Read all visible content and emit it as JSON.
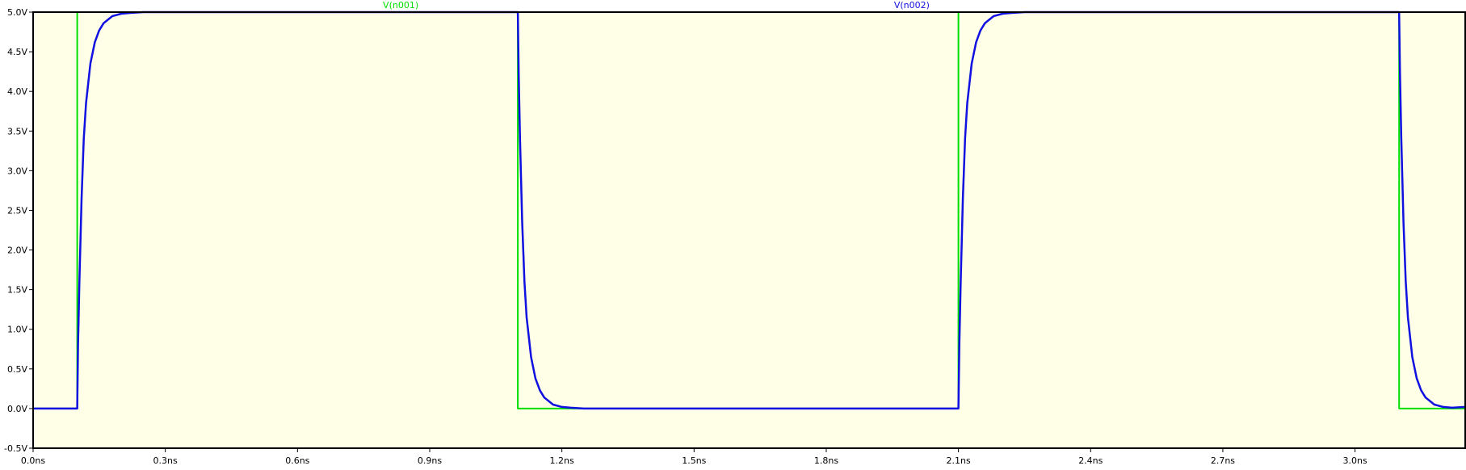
{
  "chart_data": {
    "type": "line",
    "title": "",
    "xlabel": "",
    "ylabel": "",
    "xlim": [
      0.0,
      3.25
    ],
    "ylim": [
      -0.5,
      5.0
    ],
    "background": "#ffffe8",
    "frame_color": "#000000",
    "grid": false,
    "legend_placement": "top",
    "x_ticks": [
      {
        "value": 0.0,
        "label": "0.0ns"
      },
      {
        "value": 0.3,
        "label": "0.3ns"
      },
      {
        "value": 0.6,
        "label": "0.6ns"
      },
      {
        "value": 0.9,
        "label": "0.9ns"
      },
      {
        "value": 1.2,
        "label": "1.2ns"
      },
      {
        "value": 1.5,
        "label": "1.5ns"
      },
      {
        "value": 1.8,
        "label": "1.8ns"
      },
      {
        "value": 2.1,
        "label": "2.1ns"
      },
      {
        "value": 2.4,
        "label": "2.4ns"
      },
      {
        "value": 2.7,
        "label": "2.7ns"
      },
      {
        "value": 3.0,
        "label": "3.0ns"
      }
    ],
    "y_ticks": [
      {
        "value": 5.0,
        "label": "5.0V"
      },
      {
        "value": 4.5,
        "label": "4.5V"
      },
      {
        "value": 4.0,
        "label": "4.0V"
      },
      {
        "value": 3.5,
        "label": "3.5V"
      },
      {
        "value": 3.0,
        "label": "3.0V"
      },
      {
        "value": 2.5,
        "label": "2.5V"
      },
      {
        "value": 2.0,
        "label": "2.0V"
      },
      {
        "value": 1.5,
        "label": "1.5V"
      },
      {
        "value": 1.0,
        "label": "1.0V"
      },
      {
        "value": 0.5,
        "label": "0.5V"
      },
      {
        "value": 0.0,
        "label": "0.0V"
      },
      {
        "value": -0.5,
        "label": "-0.5V"
      }
    ],
    "series": [
      {
        "name": "V(n001)",
        "color": "#00e000",
        "x": [
          0.0,
          0.1,
          0.1,
          1.1,
          1.1,
          2.1,
          2.1,
          3.1,
          3.1,
          3.25
        ],
        "y": [
          0.0,
          0.0,
          5.0,
          5.0,
          0.0,
          0.0,
          5.0,
          5.0,
          0.0,
          0.0
        ]
      },
      {
        "name": "V(n002)",
        "color": "#1010e0",
        "x": [
          0.0,
          0.1,
          0.102,
          0.105,
          0.11,
          0.115,
          0.12,
          0.13,
          0.14,
          0.15,
          0.16,
          0.18,
          0.2,
          0.22,
          0.25,
          0.3,
          1.1,
          1.102,
          1.105,
          1.11,
          1.115,
          1.12,
          1.13,
          1.14,
          1.15,
          1.16,
          1.18,
          1.2,
          1.22,
          1.25,
          1.3,
          2.1,
          2.102,
          2.105,
          2.11,
          2.115,
          2.12,
          2.13,
          2.14,
          2.15,
          2.16,
          2.18,
          2.2,
          2.22,
          2.25,
          2.3,
          3.1,
          3.102,
          3.105,
          3.11,
          3.115,
          3.12,
          3.13,
          3.14,
          3.15,
          3.16,
          3.18,
          3.2,
          3.22,
          3.25
        ],
        "y": [
          0.0,
          0.0,
          0.8,
          1.6,
          2.65,
          3.4,
          3.85,
          4.35,
          4.62,
          4.77,
          4.86,
          4.95,
          4.98,
          4.99,
          5.0,
          5.0,
          5.0,
          4.2,
          3.4,
          2.35,
          1.6,
          1.15,
          0.65,
          0.38,
          0.23,
          0.14,
          0.05,
          0.02,
          0.01,
          0.0,
          0.0,
          0.0,
          0.8,
          1.6,
          2.65,
          3.4,
          3.85,
          4.35,
          4.62,
          4.77,
          4.86,
          4.95,
          4.98,
          4.99,
          5.0,
          5.0,
          5.0,
          4.2,
          3.4,
          2.35,
          1.6,
          1.15,
          0.65,
          0.38,
          0.23,
          0.14,
          0.05,
          0.02,
          0.01,
          0.02
        ]
      }
    ]
  }
}
